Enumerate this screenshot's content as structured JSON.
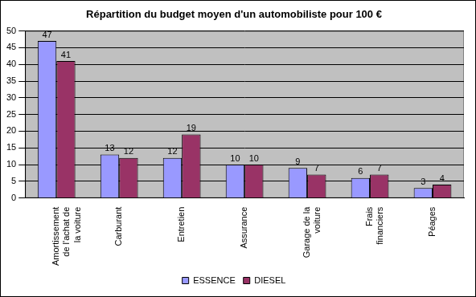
{
  "chart_data": {
    "type": "bar",
    "title": "Répartition du budget moyen d'un automobiliste pour 100 €",
    "categories": [
      "Amortissement de l'achat de la voiture",
      "Carburant",
      "Entretien",
      "Assurance",
      "Garage de la voiture",
      "Frais financiers",
      "Péages"
    ],
    "series": [
      {
        "name": "ESSENCE",
        "color": "#9999ff",
        "values": [
          47,
          13,
          12,
          10,
          9,
          6,
          3
        ]
      },
      {
        "name": "DIESEL",
        "color": "#993366",
        "values": [
          41,
          12,
          19,
          10,
          7,
          7,
          4
        ]
      }
    ],
    "ylim": [
      0,
      50
    ],
    "yticks": [
      0,
      5,
      10,
      15,
      20,
      25,
      30,
      35,
      40,
      45,
      50
    ],
    "grid": true,
    "legend": "bottom",
    "data_labels": true
  }
}
